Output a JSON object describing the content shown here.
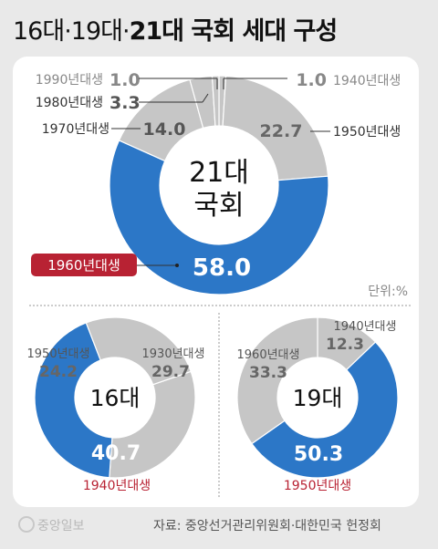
{
  "header": {
    "title_light": "16대·19대·",
    "title_bold": "21대 국회 세대 구성"
  },
  "footer": {
    "logo": "중앙일보",
    "source": "자료: 중앙선거관리위원회·대한민국 헌정회"
  },
  "colors": {
    "accent": "#2c77c7",
    "gray": "#c6c6c6",
    "highlight": "#b82233",
    "divider": "#999999"
  },
  "chart_data": [
    {
      "type": "pie",
      "center_label": [
        "21대",
        "국회"
      ],
      "unit_label": "단위:%",
      "highlight": "1960년대생",
      "slices": [
        {
          "label": "1940년대생",
          "value": 1.0
        },
        {
          "label": "1950년대생",
          "value": 22.7
        },
        {
          "label": "1960년대생",
          "value": 58.0
        },
        {
          "label": "1970년대생",
          "value": 14.0
        },
        {
          "label": "1980년대생",
          "value": 3.3
        },
        {
          "label": "1990년대생",
          "value": 1.0
        }
      ]
    },
    {
      "type": "pie",
      "center_label": [
        "16대"
      ],
      "highlight": "1940년대생",
      "slices": [
        {
          "label": "1930년대생",
          "value": 29.7
        },
        {
          "label": "1940년대생",
          "value": 40.7
        },
        {
          "label": "1950년대생",
          "value": 24.2
        }
      ]
    },
    {
      "type": "pie",
      "center_label": [
        "19대"
      ],
      "highlight": "1950년대생",
      "slices": [
        {
          "label": "1940년대생",
          "value": 12.3
        },
        {
          "label": "1950년대생",
          "value": 50.3
        },
        {
          "label": "1960년대생",
          "value": 33.3
        }
      ]
    }
  ]
}
